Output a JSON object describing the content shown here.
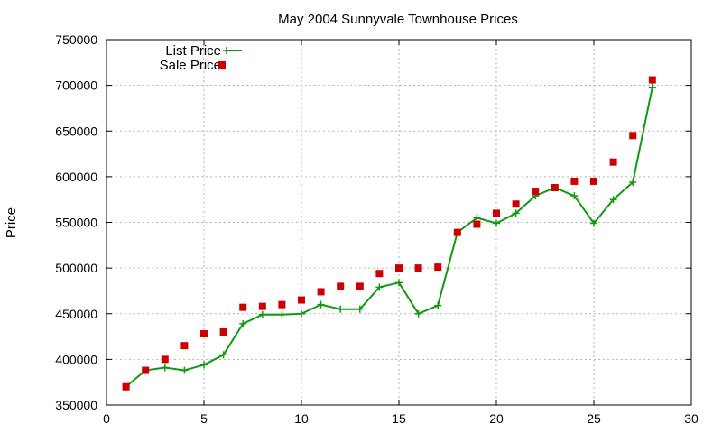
{
  "chart_data": {
    "type": "line",
    "title": "May 2004 Sunnyvale Townhouse Prices",
    "xlabel": "",
    "ylabel": "Price",
    "xlim": [
      0,
      30
    ],
    "ylim": [
      350000,
      750000
    ],
    "xticks": [
      0,
      5,
      10,
      15,
      20,
      25,
      30
    ],
    "yticks": [
      350000,
      400000,
      450000,
      500000,
      550000,
      600000,
      650000,
      700000,
      750000
    ],
    "grid": true,
    "legend_position": "top-left",
    "x": [
      1,
      2,
      3,
      4,
      5,
      6,
      7,
      8,
      9,
      10,
      11,
      12,
      13,
      14,
      15,
      16,
      17,
      18,
      19,
      20,
      21,
      22,
      23,
      24,
      25,
      26,
      27,
      28
    ],
    "series": [
      {
        "name": "List Price",
        "style": "line-plus",
        "color": "#119911",
        "values": [
          370000,
          388000,
          391000,
          388000,
          394000,
          405000,
          439000,
          449000,
          449000,
          450000,
          460000,
          455000,
          455000,
          479000,
          484000,
          450000,
          459000,
          539000,
          555000,
          549000,
          560000,
          579000,
          588000,
          579000,
          549000,
          575000,
          594000,
          698000
        ]
      },
      {
        "name": "Sale Price",
        "style": "square",
        "color": "#cc0000",
        "values": [
          370000,
          388000,
          400000,
          415000,
          428000,
          430000,
          457000,
          458000,
          460000,
          465000,
          474000,
          480000,
          480000,
          494000,
          500000,
          500000,
          501000,
          539000,
          548000,
          560000,
          570000,
          584000,
          588000,
          595000,
          595000,
          616000,
          645000,
          706000
        ]
      }
    ]
  }
}
